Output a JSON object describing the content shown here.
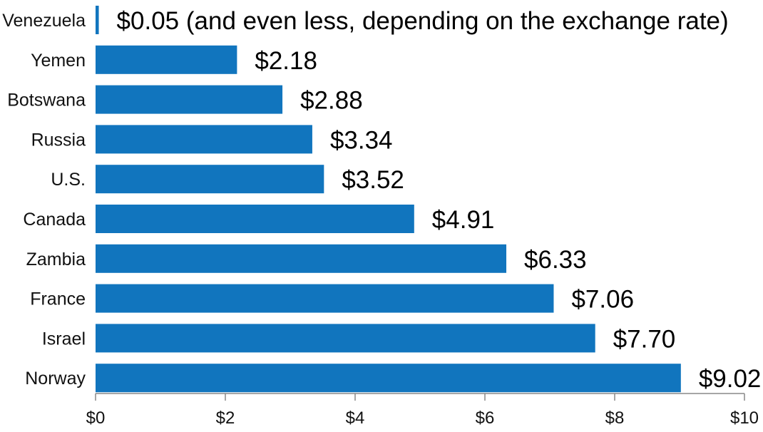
{
  "chart_data": {
    "type": "bar",
    "orientation": "horizontal",
    "title": "",
    "xlabel": "",
    "ylabel": "",
    "categories": [
      "Venezuela",
      "Yemen",
      "Botswana",
      "Russia",
      "U.S.",
      "Canada",
      "Zambia",
      "France",
      "Israel",
      "Norway"
    ],
    "values": [
      0.05,
      2.18,
      2.88,
      3.34,
      3.52,
      4.91,
      6.33,
      7.06,
      7.7,
      9.02
    ],
    "value_labels": [
      "$0.05 (and even less, depending on the exchange rate)",
      "$2.18",
      "$2.88",
      "$3.34",
      "$3.52",
      "$4.91",
      "$6.33",
      "$7.06",
      "$7.70",
      "$9.02"
    ],
    "xlim": [
      0,
      10
    ],
    "x_ticks": [
      0,
      2,
      4,
      6,
      8,
      10
    ],
    "x_tick_labels": [
      "$0",
      "$2",
      "$4",
      "$6",
      "$8",
      "$10"
    ],
    "grid": false,
    "legend": "none",
    "bar_color": "#1175BE",
    "axis_color": "#888888"
  }
}
